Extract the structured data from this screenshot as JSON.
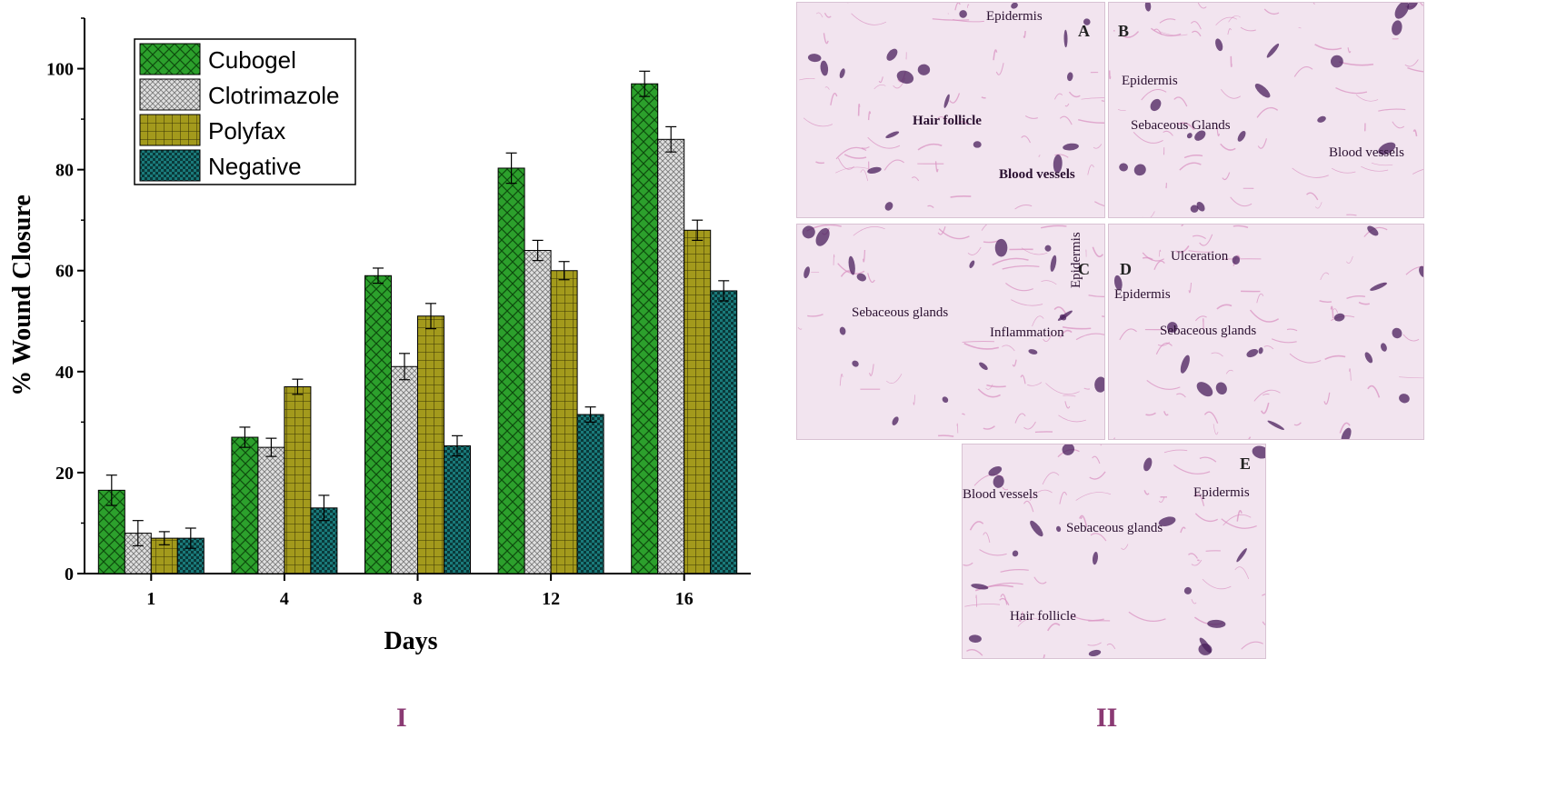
{
  "chart_data": {
    "type": "bar",
    "title": "",
    "xlabel": "Days",
    "ylabel": "% Wound Closure",
    "categories": [
      "1",
      "4",
      "8",
      "12",
      "16"
    ],
    "ylim": [
      0,
      110
    ],
    "yticks": [
      0,
      20,
      40,
      60,
      80,
      100
    ],
    "grid": false,
    "legend_position": "top-left",
    "series": [
      {
        "name": "Cubogel",
        "values": [
          16.5,
          27,
          59,
          80.3,
          97
        ],
        "errors": [
          3,
          2,
          1.5,
          3,
          2.5
        ],
        "color": "#2ca02c",
        "pattern": "diagonal-cross"
      },
      {
        "name": "Clotrimazole",
        "values": [
          8,
          25,
          41,
          64,
          86
        ],
        "errors": [
          2.5,
          1.8,
          2.6,
          2,
          2.5
        ],
        "color": "#d9d9d9",
        "pattern": "dense-cross"
      },
      {
        "name": "Polyfax",
        "values": [
          7,
          37,
          51,
          60,
          68
        ],
        "errors": [
          1.3,
          1.5,
          2.5,
          1.8,
          2
        ],
        "color": "#a39a1c",
        "pattern": "grid"
      },
      {
        "name": "Negative",
        "values": [
          7,
          13,
          25.3,
          31.5,
          56
        ],
        "errors": [
          2,
          2.5,
          2,
          1.5,
          2
        ],
        "color": "#1a7a7a",
        "pattern": "checker"
      }
    ]
  },
  "panel_labels": {
    "left": "I",
    "right": "II"
  },
  "micrographs": [
    {
      "letter": "A",
      "labels": [
        "Epidermis",
        "Hair follicle",
        "Blood vessels"
      ]
    },
    {
      "letter": "B",
      "labels": [
        "Epidermis",
        "Sebaceous Glands",
        "Blood vessels"
      ]
    },
    {
      "letter": "C",
      "labels": [
        "Sebaceous glands",
        "Inflammation",
        "Epidermis"
      ]
    },
    {
      "letter": "D",
      "labels": [
        "Ulceration",
        "Epidermis",
        "Sebaceous glands"
      ]
    },
    {
      "letter": "E",
      "labels": [
        "Blood vessels",
        "Epidermis",
        "Sebaceous glands",
        "Hair follicle"
      ]
    }
  ],
  "colors": {
    "tissue_bg": "#f2e4ef",
    "tissue_pink": "#d98fc0",
    "tissue_purple": "#4a1f5c",
    "panel_label": "#8a3a73"
  }
}
